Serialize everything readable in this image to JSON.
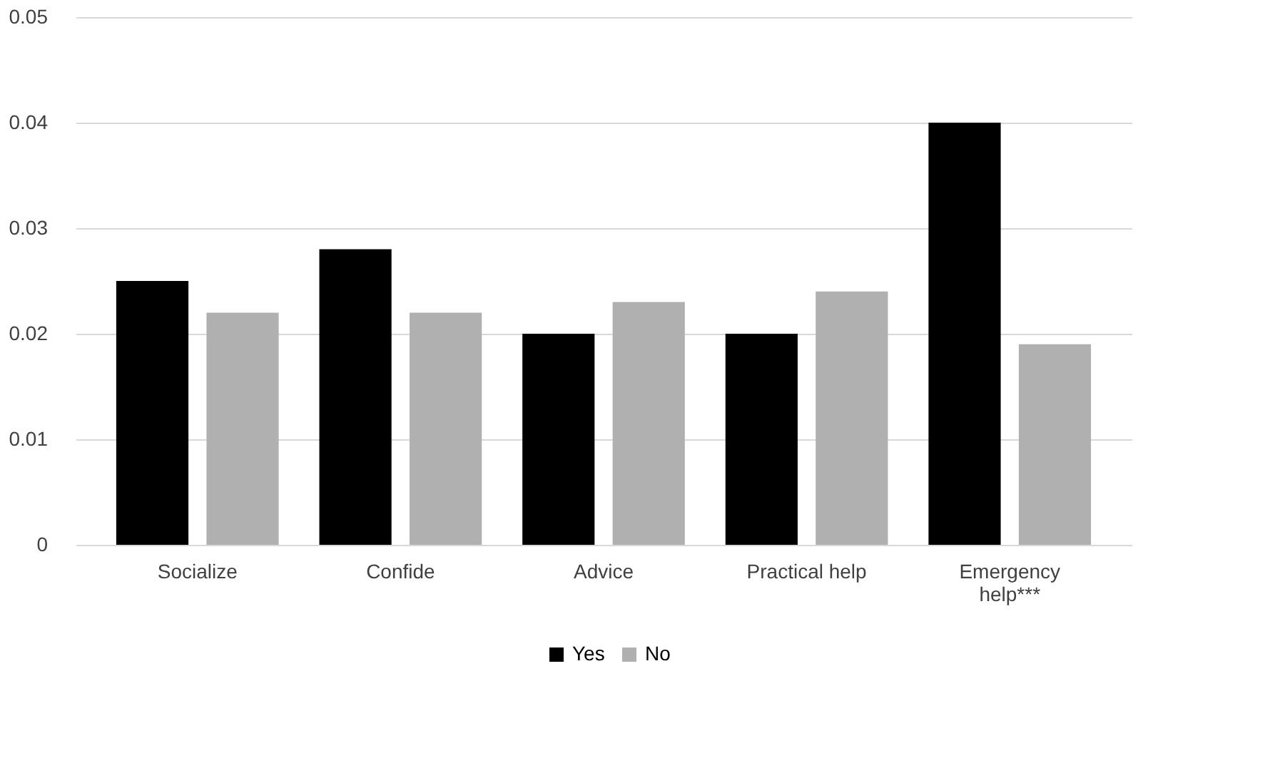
{
  "chart_data": {
    "type": "bar",
    "categories": [
      "Socialize",
      "Confide",
      "Advice",
      "Practical help",
      "Emergency help***"
    ],
    "series": [
      {
        "name": "Yes",
        "color": "#000000",
        "values": [
          0.025,
          0.028,
          0.02,
          0.02,
          0.04
        ]
      },
      {
        "name": "No",
        "color": "#b0b0b0",
        "values": [
          0.022,
          0.022,
          0.023,
          0.024,
          0.019
        ]
      }
    ],
    "ylim": [
      0,
      0.05
    ],
    "yticks": [
      0,
      0.01,
      0.02,
      0.03,
      0.04,
      0.05
    ],
    "grid": "y",
    "legend": "bottom"
  }
}
